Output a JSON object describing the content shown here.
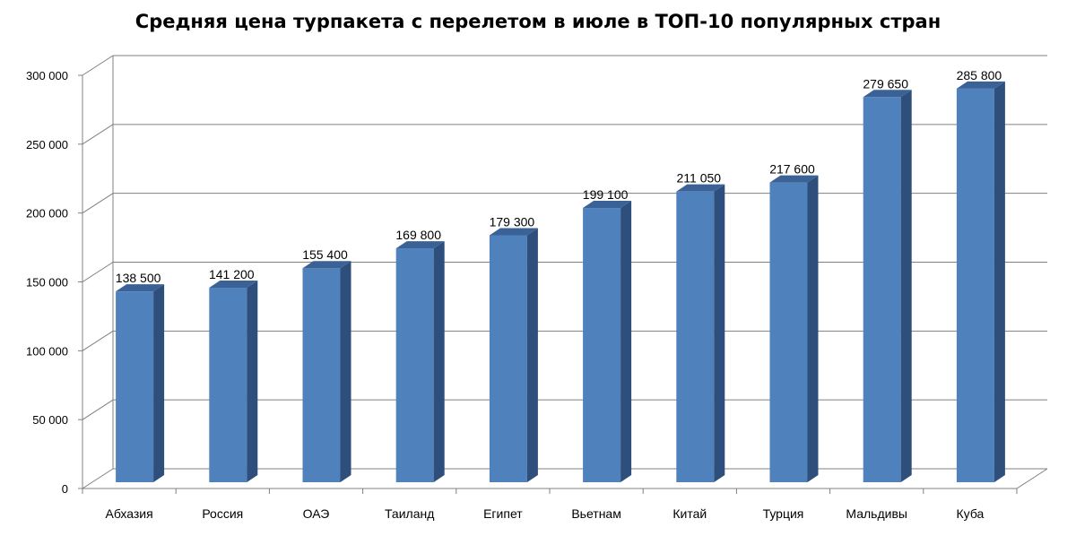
{
  "chart_data": {
    "type": "bar",
    "title": "Средняя цена турпакета с перелетом в июле в ТОП-10 популярных стран",
    "categories": [
      "Абхазия",
      "Россия",
      "ОАЭ",
      "Таиланд",
      "Египет",
      "Вьетнам",
      "Китай",
      "Турция",
      "Мальдивы",
      "Куба"
    ],
    "values": [
      138500,
      141200,
      155400,
      169800,
      179300,
      199100,
      211050,
      217600,
      279650,
      285800
    ],
    "value_labels": [
      "138 500",
      "141 200",
      "155 400",
      "169 800",
      "179 300",
      "199 100",
      "211 050",
      "217 600",
      "279 650",
      "285 800"
    ],
    "ylim": [
      0,
      300000
    ],
    "yticks": [
      0,
      50000,
      100000,
      150000,
      200000,
      250000,
      300000
    ],
    "ytick_labels": [
      "0",
      "50 000",
      "100 000",
      "150 000",
      "200 000",
      "250 000",
      "300 000"
    ],
    "xlabel": "",
    "ylabel": "",
    "grid": true,
    "style": "3d-column",
    "colors": {
      "bar_front": "#4F81BD",
      "bar_side": "#2E4E7C",
      "bar_top": "#3B6296",
      "grid": "#808080",
      "axis": "#808080"
    }
  }
}
